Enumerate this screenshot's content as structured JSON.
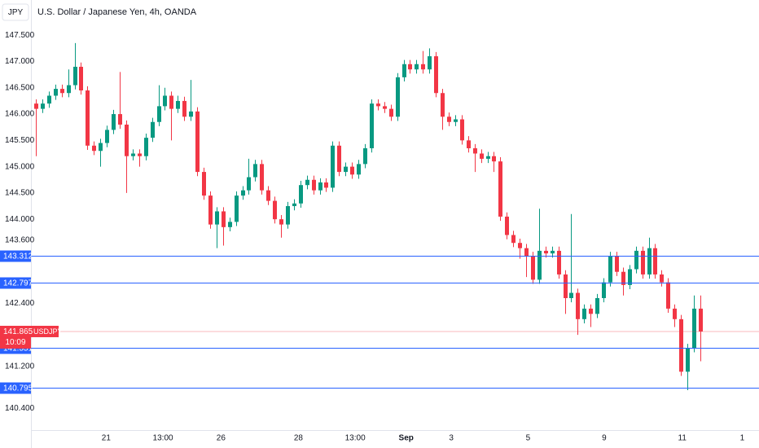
{
  "chart_data": {
    "type": "candlestick",
    "title": "U.S. Dollar / Japanese Yen, 4h, OANDA",
    "currency": "JPY",
    "symbol": "USDJPY",
    "countdown": "10:09",
    "last_price": 141.865,
    "up_color": "#089981",
    "down_color": "#f23645",
    "level_color": "#2962ff",
    "levels": [
      143.312,
      142.797,
      141.551,
      140.795
    ],
    "open": [
      146.2,
      146.1,
      146.2,
      146.35,
      146.48,
      146.4,
      146.55,
      146.9,
      146.45,
      145.4,
      145.3,
      145.45,
      145.7,
      146.0,
      145.8,
      145.2,
      145.25,
      145.2,
      145.55,
      145.85,
      146.15,
      146.35,
      146.1,
      146.25,
      145.95,
      146.05,
      144.9,
      144.45,
      143.9,
      144.15,
      143.85,
      143.95,
      144.45,
      144.55,
      144.8,
      145.05,
      144.55,
      144.35,
      144.0,
      143.9,
      144.25,
      144.3,
      144.65,
      144.75,
      144.55,
      144.7,
      144.6,
      145.4,
      144.9,
      145.0,
      144.85,
      145.05,
      145.35,
      146.2,
      146.15,
      146.1,
      145.95,
      146.7,
      146.95,
      146.85,
      146.95,
      146.85,
      147.1,
      146.4,
      145.95,
      145.85,
      145.9,
      145.5,
      145.35,
      145.25,
      145.15,
      145.2,
      145.1,
      144.05,
      143.7,
      143.55,
      143.45,
      143.3,
      142.85,
      143.4,
      143.35,
      143.4,
      142.95,
      142.5,
      142.6,
      142.1,
      142.3,
      142.2,
      142.5,
      142.8,
      143.3,
      143.0,
      142.75,
      143.05,
      143.4,
      142.95,
      143.45,
      142.95,
      142.8,
      142.3,
      142.1,
      141.1,
      141.55,
      142.3
    ],
    "high": [
      146.28,
      146.28,
      146.43,
      146.56,
      146.56,
      146.85,
      147.35,
      146.98,
      146.53,
      145.48,
      145.53,
      145.78,
      146.08,
      146.8,
      145.88,
      145.33,
      145.33,
      145.63,
      145.93,
      146.55,
      146.5,
      146.43,
      146.35,
      146.33,
      146.65,
      146.13,
      144.98,
      144.53,
      144.23,
      144.23,
      144.03,
      144.53,
      144.63,
      145.15,
      145.13,
      145.13,
      144.63,
      144.43,
      144.08,
      144.33,
      144.38,
      144.73,
      144.83,
      144.83,
      144.78,
      144.78,
      145.48,
      145.48,
      145.08,
      145.08,
      145.13,
      145.43,
      146.28,
      146.28,
      146.23,
      146.18,
      146.78,
      147.03,
      147.03,
      147.03,
      147.2,
      147.25,
      147.18,
      146.48,
      146.03,
      145.98,
      145.98,
      145.58,
      145.43,
      145.33,
      145.28,
      145.28,
      145.18,
      144.13,
      143.78,
      143.63,
      143.53,
      143.38,
      144.2,
      143.48,
      143.48,
      143.48,
      143.03,
      144.1,
      142.68,
      142.38,
      142.38,
      142.58,
      142.88,
      143.38,
      143.38,
      143.08,
      143.13,
      143.48,
      143.48,
      143.65,
      143.53,
      143.03,
      142.88,
      142.38,
      142.18,
      141.63,
      142.55,
      142.55
    ],
    "low": [
      145.2,
      146.02,
      146.12,
      146.27,
      146.32,
      146.32,
      146.47,
      146.37,
      145.32,
      145.22,
      145.0,
      145.37,
      145.62,
      145.72,
      144.5,
      145.12,
      145.0,
      145.12,
      145.47,
      145.77,
      146.07,
      145.5,
      146.02,
      145.87,
      145.87,
      144.82,
      144.37,
      143.82,
      143.45,
      143.5,
      143.77,
      143.87,
      144.37,
      144.47,
      144.72,
      144.47,
      144.27,
      143.92,
      143.65,
      143.82,
      144.17,
      144.22,
      144.57,
      144.47,
      144.47,
      144.52,
      144.52,
      144.82,
      144.82,
      144.77,
      144.77,
      144.97,
      145.27,
      146.07,
      146.02,
      145.87,
      145.87,
      146.62,
      146.77,
      146.77,
      146.77,
      146.77,
      146.32,
      145.7,
      145.77,
      145.77,
      145.42,
      145.27,
      144.9,
      145.07,
      145.07,
      144.9,
      143.97,
      143.62,
      143.47,
      143.25,
      142.9,
      142.77,
      142.77,
      143.27,
      143.27,
      142.87,
      142.2,
      142.42,
      141.8,
      142.02,
      141.95,
      142.12,
      142.42,
      142.72,
      142.92,
      142.55,
      142.67,
      142.97,
      142.87,
      142.87,
      142.87,
      142.72,
      142.22,
      141.95,
      141.02,
      140.75,
      141.47,
      141.3
    ],
    "close": [
      146.1,
      146.2,
      146.35,
      146.48,
      146.4,
      146.55,
      146.9,
      146.45,
      145.4,
      145.3,
      145.45,
      145.7,
      146.0,
      145.8,
      145.2,
      145.25,
      145.2,
      145.55,
      145.85,
      146.15,
      146.35,
      146.1,
      146.25,
      145.95,
      146.05,
      144.9,
      144.45,
      143.9,
      144.15,
      143.85,
      143.95,
      144.45,
      144.55,
      144.8,
      145.05,
      144.55,
      144.35,
      144.0,
      143.9,
      144.25,
      144.3,
      144.65,
      144.75,
      144.55,
      144.7,
      144.6,
      145.4,
      144.9,
      145.0,
      144.85,
      145.05,
      145.35,
      146.2,
      146.15,
      146.1,
      145.95,
      146.7,
      146.95,
      146.85,
      146.95,
      146.85,
      147.1,
      146.4,
      145.95,
      145.85,
      145.9,
      145.5,
      145.35,
      145.25,
      145.15,
      145.2,
      145.1,
      144.05,
      143.7,
      143.55,
      143.45,
      143.3,
      142.85,
      143.4,
      143.35,
      143.4,
      142.95,
      142.5,
      142.6,
      142.1,
      142.3,
      142.2,
      142.5,
      142.8,
      143.3,
      143.0,
      142.75,
      143.05,
      143.4,
      142.95,
      143.45,
      142.95,
      142.8,
      142.3,
      142.1,
      141.1,
      141.55,
      142.3,
      141.865
    ],
    "xlim": [
      -0.76,
      112.1
    ],
    "xticks": [
      {
        "value": 10.9,
        "label": "21"
      },
      {
        "value": 19.7,
        "label": "13:00"
      },
      {
        "value": 28.7,
        "label": "26"
      },
      {
        "value": 40.7,
        "label": "28"
      },
      {
        "value": 49.5,
        "label": "13:00"
      },
      {
        "value": 57.4,
        "label": "Sep"
      },
      {
        "value": 64.4,
        "label": "3"
      },
      {
        "value": 76.3,
        "label": "5"
      },
      {
        "value": 88.1,
        "label": "9"
      },
      {
        "value": 100.2,
        "label": "11"
      },
      {
        "value": 109.5,
        "label": "1"
      }
    ],
    "ylim": [
      139.99,
      148.17
    ],
    "yticks": [
      {
        "value": 147.5,
        "label": "147.500"
      },
      {
        "value": 147,
        "label": "147.000"
      },
      {
        "value": 146.5,
        "label": "146.500"
      },
      {
        "value": 146,
        "label": "146.000"
      },
      {
        "value": 145.5,
        "label": "145.500"
      },
      {
        "value": 145,
        "label": "145.000"
      },
      {
        "value": 144.5,
        "label": "144.500"
      },
      {
        "value": 144,
        "label": "144.000"
      },
      {
        "value": 143.6,
        "label": "143.600"
      },
      {
        "value": 142.4,
        "label": "142.400"
      },
      {
        "value": 141.2,
        "label": "141.200"
      },
      {
        "value": 140.4,
        "label": "140.400"
      }
    ]
  }
}
